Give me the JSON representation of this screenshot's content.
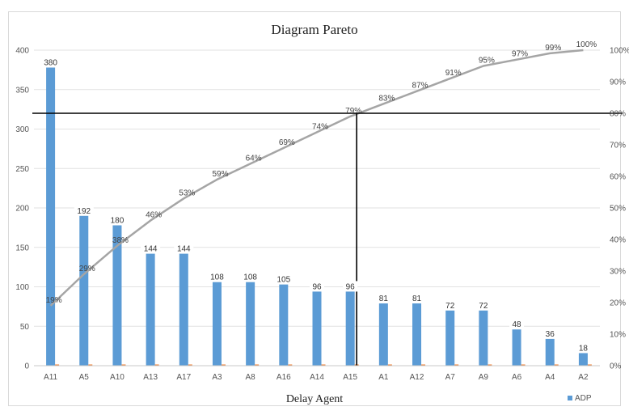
{
  "chart_data": {
    "type": "bar",
    "title": "Diagram Pareto",
    "xlabel": "Delay Agent",
    "ylabel": "",
    "ylim": [
      0,
      400
    ],
    "y_ticks": [
      "0",
      "50",
      "100",
      "150",
      "200",
      "250",
      "300",
      "350",
      "400"
    ],
    "y2lim": [
      0,
      100
    ],
    "y2_ticks": [
      "0%",
      "10%",
      "20%",
      "30%",
      "40%",
      "50%",
      "60%",
      "70%",
      "80%",
      "90%",
      "100%"
    ],
    "categories": [
      "A11",
      "A5",
      "A10",
      "A13",
      "A17",
      "A3",
      "A8",
      "A16",
      "A14",
      "A15",
      "A1",
      "A12",
      "A7",
      "A9",
      "A6",
      "A4",
      "A2"
    ],
    "series": [
      {
        "name": "ADP",
        "type": "bar",
        "color": "#5b9bd5",
        "values": [
          380,
          192,
          180,
          144,
          144,
          108,
          108,
          105,
          96,
          96,
          81,
          81,
          72,
          72,
          48,
          36,
          18
        ],
        "labels": [
          "380",
          "192",
          "180",
          "144",
          "144",
          "108",
          "108",
          "105",
          "96",
          "96",
          "81",
          "81",
          "72",
          "72",
          "48",
          "36",
          "18"
        ]
      },
      {
        "type": "line",
        "axis": "right",
        "color": "#a5a5a5",
        "values": [
          19,
          29,
          38,
          46,
          53,
          59,
          64,
          69,
          74,
          79,
          83,
          87,
          91,
          95,
          97,
          99,
          100
        ],
        "labels": [
          "19%",
          "29%",
          "38%",
          "46%",
          "53%",
          "59%",
          "64%",
          "69%",
          "74%",
          "79%",
          "83%",
          "87%",
          "91%",
          "95%",
          "97%",
          "99%",
          "100%"
        ]
      }
    ],
    "reference_lines": {
      "horizontal_at_percent": 80,
      "vertical_at_category": "A15",
      "color": "#000000"
    },
    "grid": true,
    "legend": "bottom-right"
  }
}
